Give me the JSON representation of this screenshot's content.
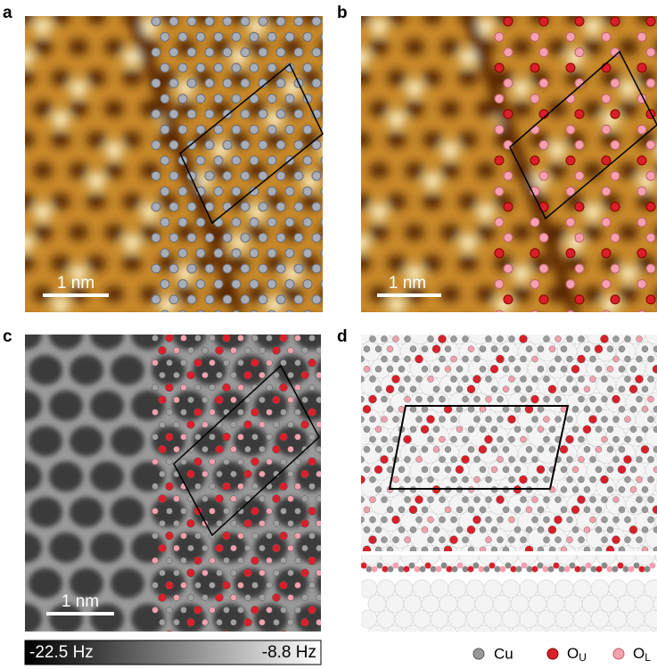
{
  "panels": [
    {
      "label": "a",
      "scale_bar": "1 nm"
    },
    {
      "label": "b",
      "scale_bar": "1 nm"
    },
    {
      "label": "c",
      "scale_bar": "1 nm"
    },
    {
      "label": "d"
    }
  ],
  "colorbar": {
    "min_label": "-22.5 Hz",
    "max_label": "-8.8 Hz"
  },
  "legend": [
    {
      "label": "Cu"
    },
    {
      "label": "O",
      "subscript": "U"
    },
    {
      "label": "O",
      "subscript": "L"
    }
  ]
}
